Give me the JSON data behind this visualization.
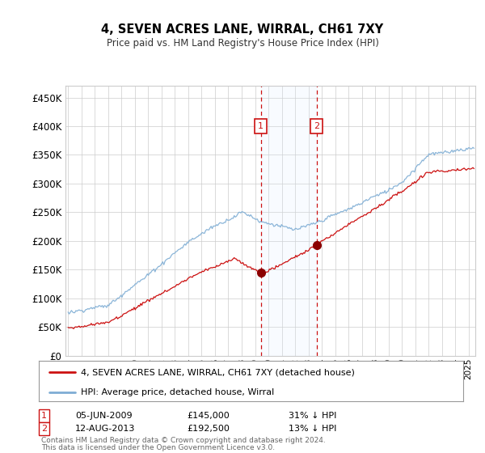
{
  "title": "4, SEVEN ACRES LANE, WIRRAL, CH61 7XY",
  "subtitle": "Price paid vs. HM Land Registry's House Price Index (HPI)",
  "ytick_labels": [
    "£0",
    "£50K",
    "£100K",
    "£150K",
    "£200K",
    "£250K",
    "£300K",
    "£350K",
    "£400K",
    "£450K"
  ],
  "yticks": [
    0,
    50000,
    100000,
    150000,
    200000,
    250000,
    300000,
    350000,
    400000,
    450000
  ],
  "hpi_color": "#7eadd4",
  "price_color": "#cc1111",
  "sale1_date_x": 2009.44,
  "sale1_price": 145000,
  "sale1_label": "1",
  "sale1_text": "05-JUN-2009",
  "sale1_amount": "£145,000",
  "sale1_hpi": "31% ↓ HPI",
  "sale2_date_x": 2013.62,
  "sale2_price": 192500,
  "sale2_label": "2",
  "sale2_text": "12-AUG-2013",
  "sale2_amount": "£192,500",
  "sale2_hpi": "13% ↓ HPI",
  "legend_line1": "4, SEVEN ACRES LANE, WIRRAL, CH61 7XY (detached house)",
  "legend_line2": "HPI: Average price, detached house, Wirral",
  "footnote1": "Contains HM Land Registry data © Crown copyright and database right 2024.",
  "footnote2": "This data is licensed under the Open Government Licence v3.0.",
  "background_color": "#ffffff",
  "grid_color": "#cccccc",
  "shade_color": "#ddeeff",
  "xlim_start": 1994.8,
  "xlim_end": 2025.5,
  "ylim": [
    0,
    470000
  ]
}
